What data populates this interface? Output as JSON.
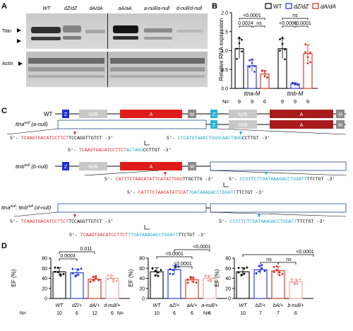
{
  "panels": {
    "a": "A",
    "b": "B",
    "c": "C",
    "d": "D"
  },
  "panel_a": {
    "lanes": [
      "WT",
      "dZ/dZ",
      "dA/dA",
      "aA/aA",
      "a-null/a-null",
      "d-null/d-null"
    ],
    "blot_labels": [
      "Titin",
      "Actin"
    ]
  },
  "panel_b": {
    "legend": [
      "WT",
      "dZ/dZ",
      "dA/dA"
    ],
    "colors": {
      "wt": "#000000",
      "dz": "#1c2fd6",
      "da": "#d9261c"
    },
    "genes": [
      "ttna-M",
      "ttnb-M"
    ],
    "ylabel": "Relative RNA expression",
    "yticks": [
      "0.0",
      "0.5",
      "1.0",
      "1.5",
      "2.0"
    ],
    "n_label": "N=",
    "n": [
      "9",
      "9",
      "6",
      "9",
      "9",
      "9"
    ],
    "stats_ttna": [
      "0.0024",
      "ns",
      "<0.0001"
    ],
    "stats_ttnb": [
      "ns",
      "<0.0001",
      "<0.0001"
    ],
    "chart_data": {
      "type": "bar",
      "categories": [
        "ttna-M",
        "ttnb-M"
      ],
      "series": [
        {
          "name": "WT",
          "values": [
            1.05,
            1.05
          ]
        },
        {
          "name": "dZ/dZ",
          "values": [
            0.6,
            0.12
          ]
        },
        {
          "name": "dA/dA",
          "values": [
            0.38,
            0.92
          ]
        }
      ],
      "ylim": [
        0,
        2.0
      ]
    }
  },
  "panel_c": {
    "domains": {
      "z": "Z",
      "n2b": "N2B",
      "a": "A",
      "m": "M"
    },
    "rows": [
      {
        "label": "WT",
        "id": "wt"
      },
      {
        "label": "ttna",
        "sup": "null",
        "suffix": " (a-null)",
        "id": "a"
      },
      {
        "label": "ttnb",
        "sup": "null",
        "suffix": " (b-null)",
        "id": "b"
      },
      {
        "label": "ttna",
        "sup": "null",
        "suffix": "; ttnb",
        "sup2": "null",
        "suffix2": " (d-null)",
        "id": "d"
      }
    ],
    "seq_a1": {
      "p": "5'- ",
      "red": "TCAAGTGACATCCTTCT",
      "blk": "TCCAGGTTGTCT",
      "s": " -3'"
    },
    "seq_a2": {
      "p": "5'- ",
      "cyan": "CTCATGTAAGCTGGGCA",
      "cyan2": "ACTAGG",
      "blk": "CCTTGT",
      "s": " -3'"
    },
    "seq_a3": {
      "p": "5'- ",
      "red": "TCAAGTGACATCCTTCT",
      "cyan": "ACTAGG",
      "blk": "CCTTGT",
      "s": " -3'"
    },
    "seq_b1": {
      "p": "5'- ",
      "red": "CATTTCTAACATATTCA",
      "red2": "TATTGGG",
      "blk": "TTGCTTG",
      "s": " -3'"
    },
    "seq_b2": {
      "p": "5'- ",
      "cyan": "CCGTTCTTGATAAAGACCTGGATT",
      "blk": "TTCTGT",
      "s": " -3'"
    },
    "seq_b3": {
      "p": "5'- ",
      "red": "CATTTCTAACATATTCAT",
      "cyan": "TGATAAAGACCTGGATT",
      "blk": "TTCTGT",
      "s": " -3'"
    },
    "seq_d1": {
      "p": "5'- ",
      "red": "TCAAGTGACATCCTTCT",
      "blk": "TCCAGGTTGTCT",
      "s": " -3'"
    },
    "seq_d2": {
      "p": "5'- ",
      "cyan": "CCGTTCTTGATAAAGACCTGGATT",
      "blk": "TTCTGT",
      "s": " -3'"
    },
    "seq_d3": {
      "p": "5'- ",
      "red": "TCAAGTGACATCCTTCT",
      "cyan": "TTGATAAAGACCTGGATT",
      "blk": "TTCTGT",
      "s": " -3'"
    },
    "colors": {
      "z": "#1f2ed1",
      "zcyan": "#29b3d6",
      "n2b": "#c8c8c8",
      "a": "#e01b1b",
      "a_dark": "#a81b1b",
      "m": "#8a8a8a",
      "seq_red": "#e3262a",
      "seq_cyan": "#1fa4cf"
    }
  },
  "panel_d": {
    "ylabel": "EF (%)",
    "yticks": [
      "0",
      "20",
      "40",
      "60",
      "80"
    ],
    "n_label": "N=",
    "charts": [
      {
        "categories": [
          "WT",
          "dZ/+",
          "dA/+",
          "d-null/+"
        ],
        "n": [
          "10",
          "6",
          "12",
          "6"
        ],
        "values": [
          53,
          51,
          38,
          40
        ],
        "colors": [
          "#000000",
          "#1c2fd6",
          "#d9261c",
          "#f0a0a0"
        ],
        "stats": [
          "0.0003",
          "0.011"
        ]
      },
      {
        "categories": [
          "WT",
          "aZ/+",
          "aA/+",
          "a-null/+"
        ],
        "n": [
          "10",
          "6",
          "6",
          "6"
        ],
        "values": [
          53,
          57,
          37,
          40
        ],
        "colors": [
          "#000000",
          "#1c2fd6",
          "#d9261c",
          "#f0a0a0"
        ],
        "stats": [
          "<0.0001",
          "<0.0001",
          "<0.0001"
        ]
      },
      {
        "categories": [
          "WT",
          "bZ/+",
          "bA/+",
          "b-null/+"
        ],
        "n": [
          "10",
          "7",
          "7",
          "6"
        ],
        "values": [
          53,
          57,
          55,
          33
        ],
        "colors": [
          "#000000",
          "#1c2fd6",
          "#d9261c",
          "#f0a0a0"
        ],
        "stats": [
          "ns",
          "ns",
          "<0.0001"
        ]
      }
    ],
    "chart_data": [
      {
        "type": "bar",
        "categories": [
          "WT",
          "dZ/+",
          "dA/+",
          "d-null/+"
        ],
        "values": [
          53,
          51,
          38,
          40
        ],
        "ylabel": "EF (%)",
        "ylim": [
          0,
          80
        ]
      },
      {
        "type": "bar",
        "categories": [
          "WT",
          "aZ/+",
          "aA/+",
          "a-null/+"
        ],
        "values": [
          53,
          57,
          37,
          40
        ],
        "ylabel": "EF (%)",
        "ylim": [
          0,
          80
        ]
      },
      {
        "type": "bar",
        "categories": [
          "WT",
          "bZ/+",
          "bA/+",
          "b-null/+"
        ],
        "values": [
          53,
          57,
          55,
          33
        ],
        "ylabel": "EF (%)",
        "ylim": [
          0,
          80
        ]
      }
    ]
  }
}
